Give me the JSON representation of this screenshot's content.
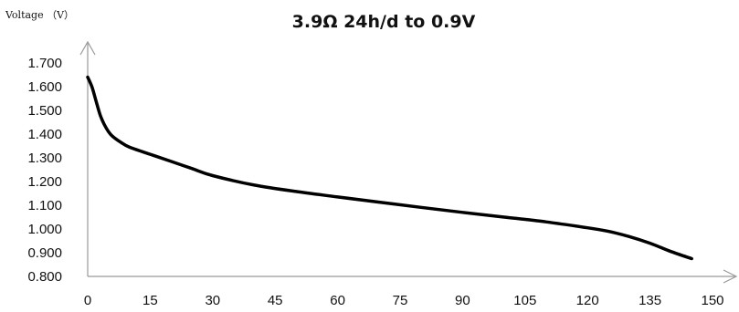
{
  "chart_data": {
    "type": "line",
    "title": "3.9Ω 24h/d to 0.9V",
    "ylabel": "Voltage （V）",
    "xlabel": "",
    "xlim": [
      0,
      150
    ],
    "ylim": [
      0.8,
      1.7
    ],
    "x_ticks": [
      "0",
      "15",
      "30",
      "45",
      "60",
      "75",
      "90",
      "105",
      "120",
      "135",
      "150"
    ],
    "y_ticks": [
      "0.800",
      "0.900",
      "1.000",
      "1.100",
      "1.200",
      "1.300",
      "1.400",
      "1.500",
      "1.600",
      "1.700"
    ],
    "grid": false,
    "series": [
      {
        "x": [
          0,
          1,
          2,
          3,
          4,
          5,
          6,
          8,
          10,
          15,
          20,
          25,
          30,
          40,
          50,
          60,
          70,
          80,
          90,
          100,
          110,
          120,
          125,
          130,
          135,
          140,
          145
        ],
        "y": [
          1.64,
          1.6,
          1.54,
          1.48,
          1.44,
          1.41,
          1.39,
          1.365,
          1.345,
          1.315,
          1.285,
          1.255,
          1.225,
          1.185,
          1.158,
          1.135,
          1.113,
          1.091,
          1.07,
          1.05,
          1.03,
          1.005,
          0.99,
          0.968,
          0.94,
          0.905,
          0.875
        ]
      }
    ],
    "colors": {
      "line": "#000000",
      "axis": "#999999"
    }
  }
}
